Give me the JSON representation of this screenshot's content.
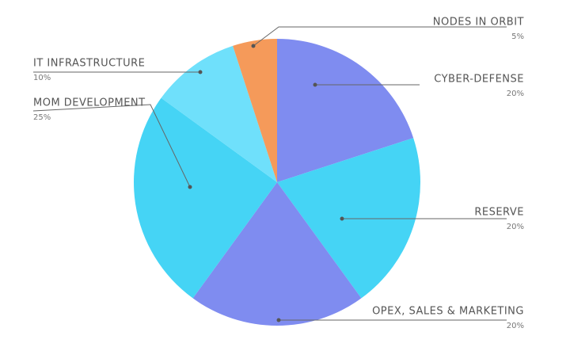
{
  "chart_data": {
    "type": "pie",
    "categories": [
      "CYBER-DEFENSE",
      "RESERVE",
      "OPEX, SALES & MARKETING",
      "MOM DEVELOPMENT",
      "IT  INFRASTRUCTURE",
      "NODES  IN  ORBIT"
    ],
    "values": [
      20,
      20,
      20,
      25,
      10,
      5
    ],
    "value_labels": [
      "20%",
      "20%",
      "20%",
      "25%",
      "10%",
      "5%"
    ],
    "colors": [
      "#7f8cf0",
      "#45d4f5",
      "#7f8cf0",
      "#45d4f5",
      "#6fe0fb",
      "#f59a5a"
    ]
  }
}
